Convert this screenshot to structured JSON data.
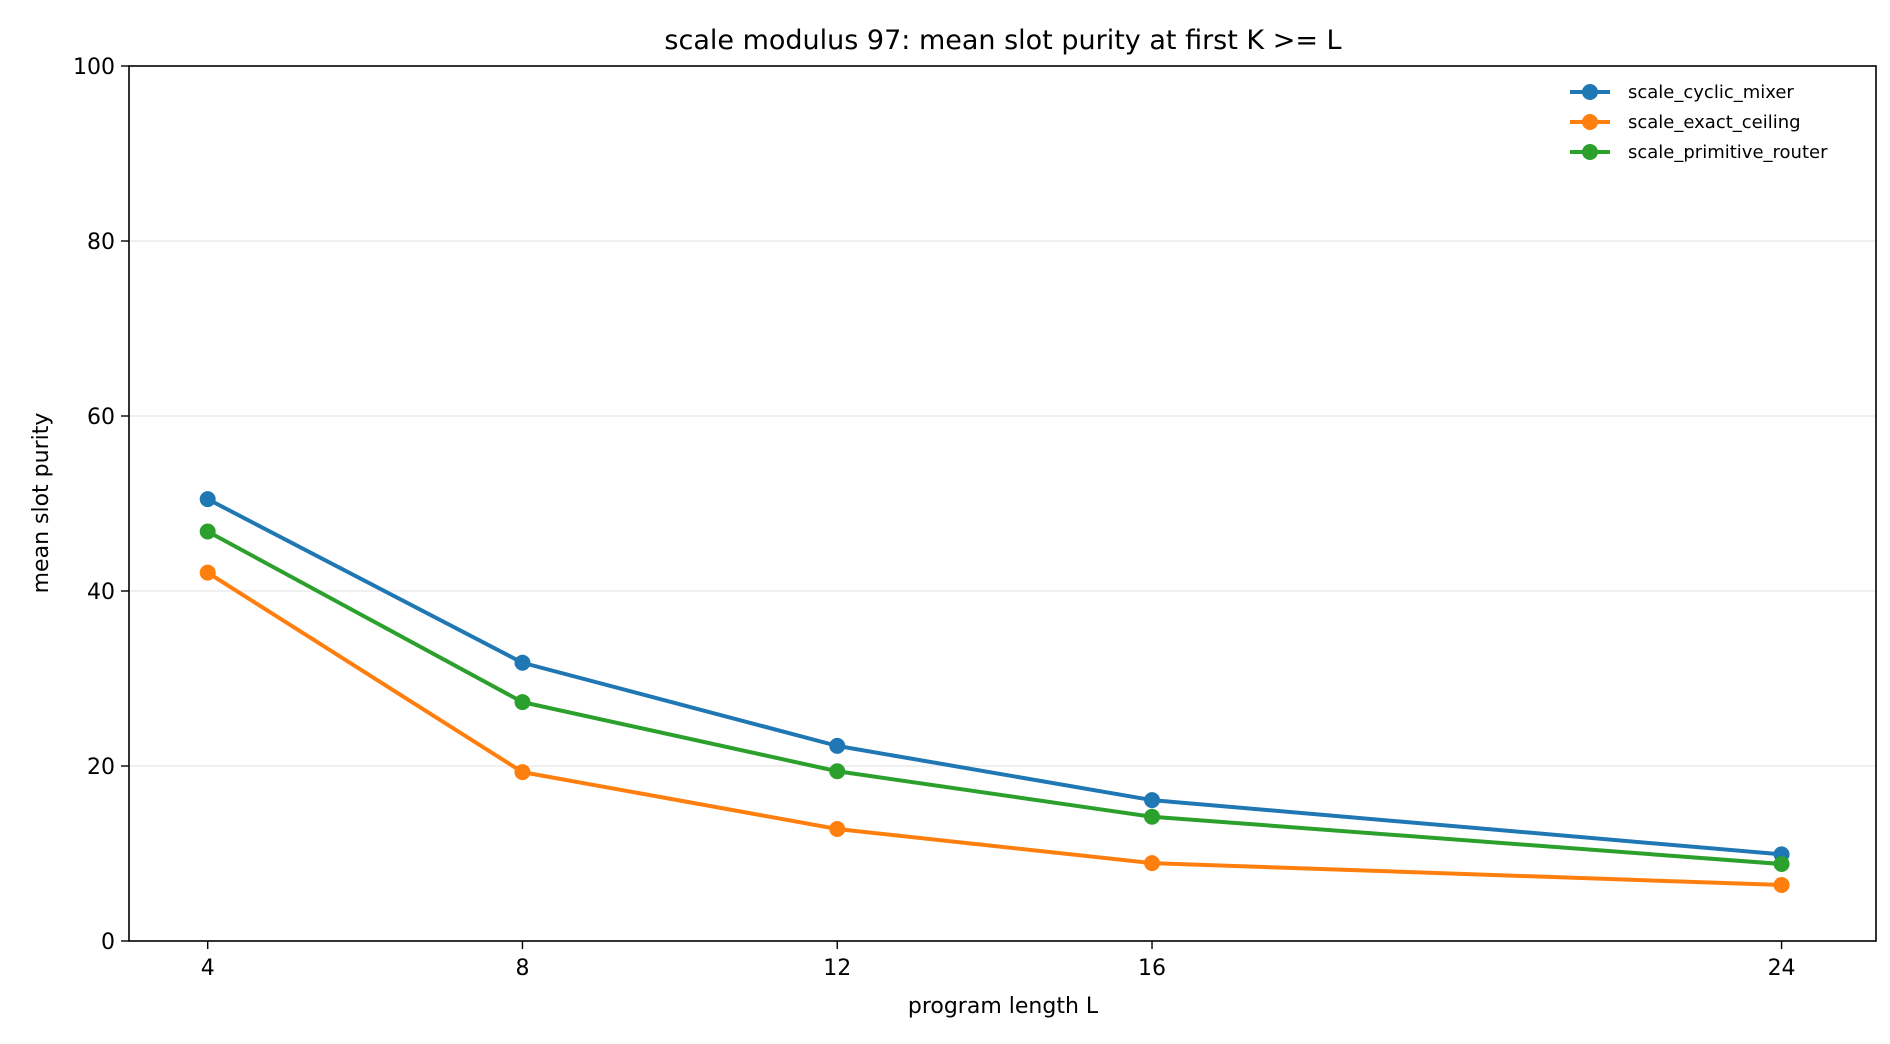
{
  "chart_data": {
    "type": "line",
    "title": "scale modulus 97: mean slot purity at first K >= L",
    "xlabel": "program length L",
    "ylabel": "mean slot purity",
    "x": [
      4,
      8,
      12,
      16,
      24
    ],
    "xticks": [
      "4",
      "8",
      "12",
      "16",
      "24"
    ],
    "xlim": [
      3,
      25.2
    ],
    "ylim": [
      0,
      100
    ],
    "yticks": [
      "0",
      "20",
      "40",
      "60",
      "80",
      "100"
    ],
    "grid": "horizontal",
    "legend_position": "top-right",
    "series": [
      {
        "name": "scale_cyclic_mixer",
        "color": "#1f77b4",
        "values": [
          50.5,
          31.8,
          22.3,
          16.1,
          9.9
        ]
      },
      {
        "name": "scale_exact_ceiling",
        "color": "#ff7f0e",
        "values": [
          42.1,
          19.3,
          12.8,
          8.9,
          6.4
        ]
      },
      {
        "name": "scale_primitive_router",
        "color": "#2ca02c",
        "values": [
          46.8,
          27.3,
          19.4,
          14.2,
          8.8
        ]
      }
    ]
  }
}
